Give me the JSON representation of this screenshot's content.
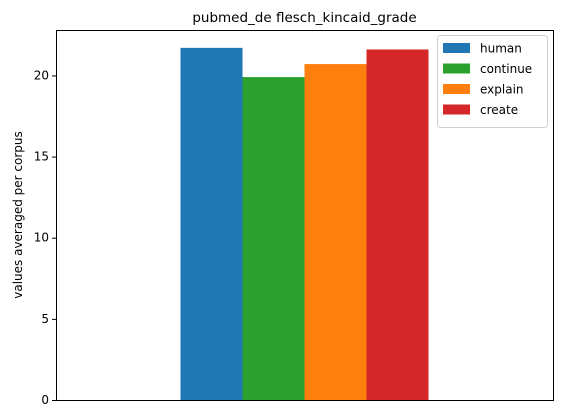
{
  "chart_data": {
    "type": "bar",
    "title": "pubmed_de flesch_kincaid_grade",
    "xlabel": "",
    "ylabel": "values averaged per corpus",
    "ylim": [
      0,
      22.8
    ],
    "yticks": [
      0,
      5,
      10,
      15,
      20
    ],
    "grid": false,
    "legend_position": "top-right",
    "categories": [
      ""
    ],
    "series": [
      {
        "name": "human",
        "values": [
          21.7
        ],
        "color": "#1f77b4"
      },
      {
        "name": "continue",
        "values": [
          19.9
        ],
        "color": "#2ca02c"
      },
      {
        "name": "explain",
        "values": [
          20.7
        ],
        "color": "#ff7f0e"
      },
      {
        "name": "create",
        "values": [
          21.6
        ],
        "color": "#d62728"
      }
    ]
  }
}
